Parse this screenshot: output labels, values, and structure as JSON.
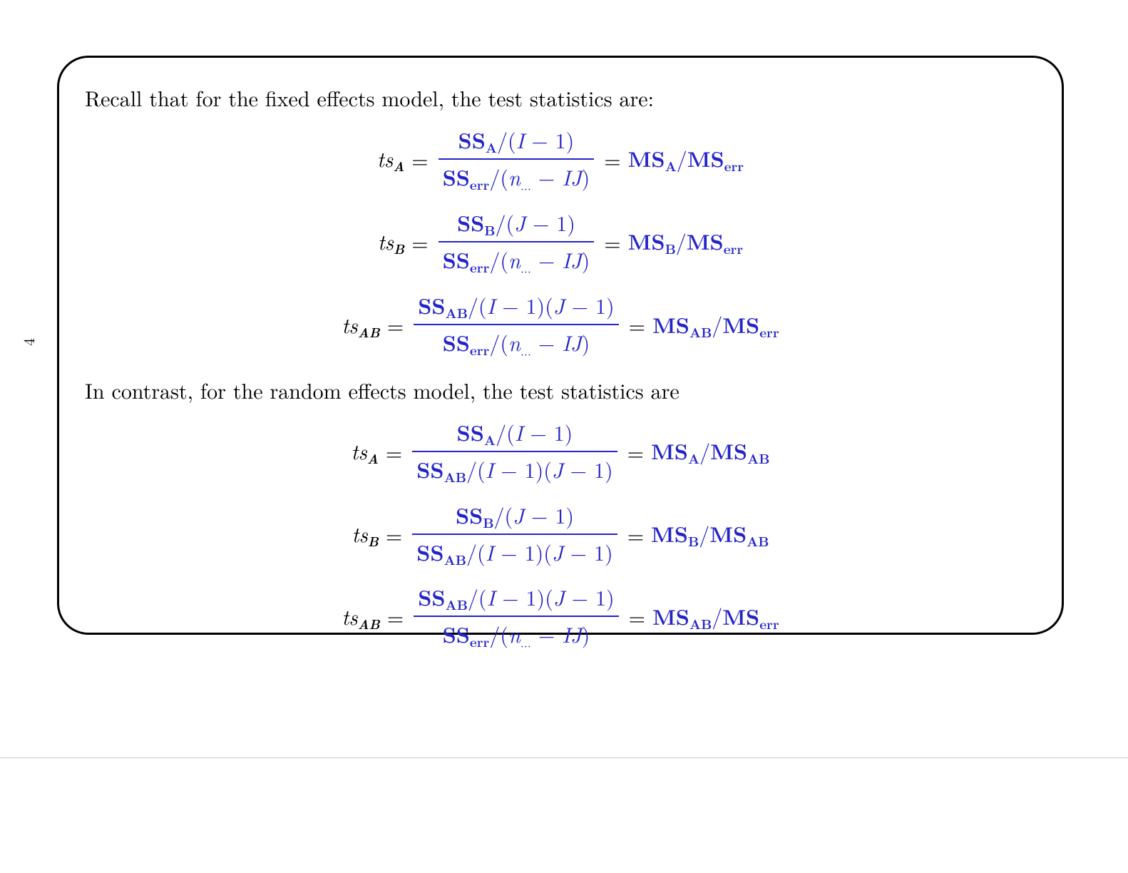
{
  "page_number": "4",
  "line1": "Recall that for the fixed effects model, the test statistics are:",
  "line2": "In contrast, for the random effects model, the test statistics are",
  "sym": {
    "ts": "ts",
    "eq": "=",
    "slash": "/",
    "minus": "−",
    "lp": "(",
    "rp": ")",
    "SS": "SS",
    "MS": "MS",
    "A": "A",
    "B": "B",
    "AB": "AB",
    "err": "err",
    "I": "I",
    "J": "J",
    "n": "n",
    "one": "1",
    "IJ": "IJ",
    "dots": "..."
  }
}
